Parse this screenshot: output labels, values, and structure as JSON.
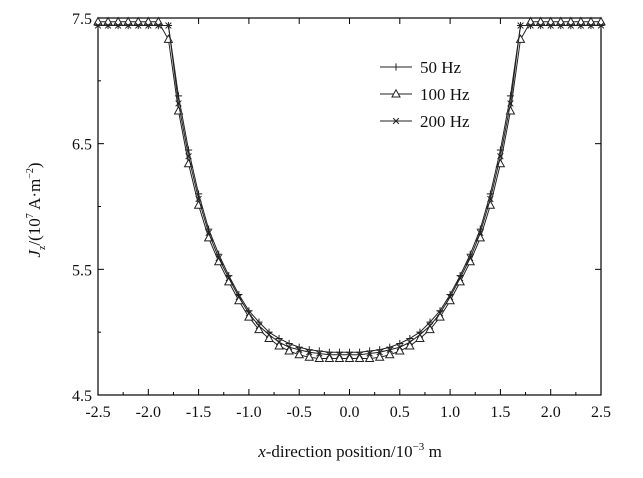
{
  "chart_data": {
    "type": "line",
    "title": "",
    "xlabel": {
      "italic": "x",
      "rest": "-direction position/10",
      "exp": "−3",
      "unit": " m"
    },
    "ylabel": {
      "italic": "J",
      "sub": "z",
      "pre": "/(10",
      "exp": "7",
      "unit": " A·m",
      "exp2": "−2",
      "close": ")"
    },
    "xlim": [
      -2.5,
      2.5
    ],
    "ylim": [
      4.5,
      7.5
    ],
    "xticks": [
      "-2.5",
      "-2.0",
      "-1.5",
      "-1.0",
      "-0.5",
      "0.0",
      "0.5",
      "1.0",
      "1.5",
      "2.0",
      "2.5"
    ],
    "yticks": [
      "4.5",
      "5.5",
      "6.5",
      "7.5"
    ],
    "legend_position": "upper-center-right",
    "colors": {
      "line": "#222222",
      "axis": "#000000"
    },
    "x": [
      -2.5,
      -2.4,
      -2.3,
      -2.2,
      -2.1,
      -2.0,
      -1.9,
      -1.8,
      -1.7,
      -1.6,
      -1.5,
      -1.4,
      -1.3,
      -1.2,
      -1.1,
      -1.0,
      -0.9,
      -0.8,
      -0.7,
      -0.6,
      -0.5,
      -0.4,
      -0.3,
      -0.2,
      -0.1,
      0.0,
      0.1,
      0.2,
      0.3,
      0.4,
      0.5,
      0.6,
      0.7,
      0.8,
      0.9,
      1.0,
      1.1,
      1.2,
      1.3,
      1.4,
      1.5,
      1.6,
      1.7,
      1.8,
      1.9,
      2.0,
      2.1,
      2.2,
      2.3,
      2.4,
      2.5
    ],
    "series": [
      {
        "name": "50 Hz",
        "marker": "plus",
        "values": [
          7.44,
          7.44,
          7.44,
          7.44,
          7.44,
          7.44,
          7.44,
          7.44,
          6.88,
          6.45,
          6.1,
          5.82,
          5.62,
          5.45,
          5.3,
          5.17,
          5.08,
          5.0,
          4.95,
          4.91,
          4.88,
          4.86,
          4.85,
          4.84,
          4.84,
          4.84,
          4.84,
          4.85,
          4.86,
          4.88,
          4.91,
          4.95,
          5.0,
          5.08,
          5.17,
          5.3,
          5.45,
          5.62,
          5.82,
          6.1,
          6.45,
          6.88,
          7.44,
          7.44,
          7.44,
          7.44,
          7.44,
          7.44,
          7.44,
          7.44,
          7.44
        ]
      },
      {
        "name": "100 Hz",
        "marker": "triangle",
        "values": [
          7.47,
          7.47,
          7.47,
          7.47,
          7.47,
          7.47,
          7.47,
          7.33,
          6.76,
          6.34,
          6.01,
          5.75,
          5.56,
          5.4,
          5.25,
          5.12,
          5.02,
          4.95,
          4.89,
          4.85,
          4.82,
          4.8,
          4.79,
          4.79,
          4.79,
          4.79,
          4.79,
          4.79,
          4.8,
          4.82,
          4.85,
          4.89,
          4.95,
          5.02,
          5.12,
          5.25,
          5.4,
          5.56,
          5.75,
          6.01,
          6.34,
          6.76,
          7.33,
          7.47,
          7.47,
          7.47,
          7.47,
          7.47,
          7.47,
          7.47,
          7.47
        ]
      },
      {
        "name": "200 Hz",
        "marker": "x",
        "values": [
          7.44,
          7.44,
          7.44,
          7.44,
          7.44,
          7.44,
          7.44,
          7.44,
          6.82,
          6.4,
          6.06,
          5.79,
          5.59,
          5.43,
          5.28,
          5.15,
          5.05,
          4.98,
          4.92,
          4.88,
          4.86,
          4.84,
          4.83,
          4.82,
          4.82,
          4.82,
          4.82,
          4.83,
          4.84,
          4.86,
          4.88,
          4.92,
          4.98,
          5.05,
          5.15,
          5.28,
          5.43,
          5.59,
          5.79,
          6.06,
          6.4,
          6.82,
          7.44,
          7.44,
          7.44,
          7.44,
          7.44,
          7.44,
          7.44,
          7.44,
          7.44
        ]
      }
    ]
  }
}
